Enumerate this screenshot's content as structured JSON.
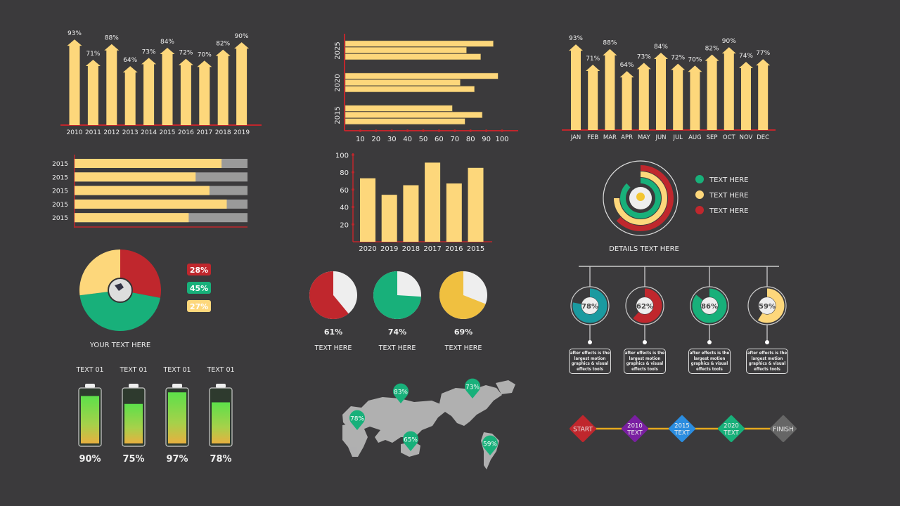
{
  "colors": {
    "bar": "#fdd77b",
    "axis": "#c0262c",
    "red": "#c0272d",
    "green": "#18b07a",
    "yellow": "#fdd77b",
    "teal": "#1a9aa0",
    "purple": "#7a1fa2",
    "blue": "#2b8de0",
    "gray": "#666",
    "gold": "#f0c040",
    "background": "#3b3a3c"
  },
  "chart_data": [
    {
      "type": "bar",
      "id": "yearly-arrows",
      "categories": [
        "2010",
        "2011",
        "2012",
        "2013",
        "2014",
        "2015",
        "2016",
        "2017",
        "2018",
        "2019"
      ],
      "values": [
        93,
        71,
        88,
        64,
        73,
        84,
        72,
        70,
        82,
        90
      ],
      "labels": [
        "93%",
        "71%",
        "88%",
        "64%",
        "73%",
        "84%",
        "72%",
        "70%",
        "82%",
        "90%"
      ]
    },
    {
      "type": "bar",
      "id": "grouped-horizontal",
      "orientation": "horizontal",
      "categories": [
        "2025",
        "2020",
        "2015"
      ],
      "series": [
        {
          "values": [
            94,
            97,
            68
          ]
        },
        {
          "values": [
            77,
            73,
            87
          ]
        },
        {
          "values": [
            86,
            82,
            76
          ]
        }
      ],
      "xticks": [
        "10",
        "20",
        "30",
        "40",
        "50",
        "60",
        "70",
        "80",
        "90",
        "100"
      ],
      "xlim": [
        0,
        100
      ]
    },
    {
      "type": "bar",
      "id": "monthly-arrows",
      "categories": [
        "JAN",
        "FEB",
        "MAR",
        "APR",
        "MAY",
        "JUN",
        "JUL",
        "AUG",
        "SEP",
        "OCT",
        "NOV",
        "DEC"
      ],
      "values": [
        93,
        71,
        88,
        64,
        73,
        84,
        72,
        70,
        82,
        90,
        74,
        77
      ],
      "labels": [
        "93%",
        "71%",
        "88%",
        "64%",
        "73%",
        "84%",
        "72%",
        "70%",
        "82%",
        "90%",
        "74%",
        "77%"
      ]
    },
    {
      "type": "bar",
      "id": "progress-bars",
      "orientation": "horizontal",
      "categories": [
        "2015",
        "2015",
        "2015",
        "2015",
        "2015"
      ],
      "values": [
        85,
        70,
        78,
        88,
        66
      ],
      "xlim": [
        0,
        100
      ]
    },
    {
      "type": "bar",
      "id": "vertical-bars",
      "categories": [
        "2020",
        "2019",
        "2018",
        "2017",
        "2016",
        "2015"
      ],
      "values": [
        73,
        54,
        65,
        91,
        67,
        85
      ],
      "yticks": [
        "20",
        "40",
        "60",
        "80",
        "100"
      ],
      "ylim": [
        0,
        100
      ]
    },
    {
      "type": "pie",
      "id": "main-pie",
      "values": [
        28,
        45,
        27
      ],
      "labels": [
        "28%",
        "45%",
        "27%"
      ],
      "caption": "YOUR TEXT HERE"
    },
    {
      "type": "pie",
      "id": "small-pies",
      "items": [
        {
          "value": 61,
          "label": "61%",
          "text": "TEXT HERE",
          "color": "#c0272d"
        },
        {
          "value": 74,
          "label": "74%",
          "text": "TEXT HERE",
          "color": "#18b07a"
        },
        {
          "value": 69,
          "label": "69%",
          "text": "TEXT HERE",
          "color": "#f0c040"
        }
      ]
    },
    {
      "type": "radial",
      "id": "concentric-rings",
      "series": [
        {
          "name": "TEXT HERE",
          "value": 88,
          "color": "#18b07a"
        },
        {
          "name": "TEXT HERE",
          "value": 75,
          "color": "#fdd77b"
        },
        {
          "name": "TEXT HERE",
          "value": 63,
          "color": "#c0272d"
        }
      ],
      "caption": "DETAILS TEXT HERE"
    },
    {
      "type": "donut",
      "id": "timeline-donuts",
      "items": [
        {
          "value": 78,
          "label": "78%",
          "color": "#1a9aa0"
        },
        {
          "value": 62,
          "label": "62%",
          "color": "#c0272d"
        },
        {
          "value": 86,
          "label": "86%",
          "color": "#18b07a"
        },
        {
          "value": 59,
          "label": "59%",
          "color": "#fdd77b"
        }
      ],
      "description": "after effects is the largest motion graphics & visual effects tools"
    },
    {
      "type": "bar",
      "id": "batteries",
      "categories": [
        "TEXT 01",
        "TEXT 01",
        "TEXT 01",
        "TEXT 01"
      ],
      "values": [
        90,
        75,
        97,
        78
      ],
      "labels": [
        "90%",
        "75%",
        "97%",
        "78%"
      ]
    },
    {
      "type": "map",
      "id": "world-map",
      "pins": [
        {
          "region": "Russia",
          "label": "83%"
        },
        {
          "region": "North America",
          "label": "73%"
        },
        {
          "region": "Africa",
          "label": "78%"
        },
        {
          "region": "Australia",
          "label": "65%"
        },
        {
          "region": "South America",
          "label": "59%"
        }
      ]
    }
  ],
  "timeline": [
    {
      "label": "START",
      "color": "#c0272d"
    },
    {
      "label": "2010\nTEXT",
      "color": "#7a1fa2"
    },
    {
      "label": "2015\nTEXT",
      "color": "#2b8de0"
    },
    {
      "label": "2020\nTEXT",
      "color": "#18b07a"
    },
    {
      "label": "FINISH",
      "color": "#666"
    }
  ]
}
